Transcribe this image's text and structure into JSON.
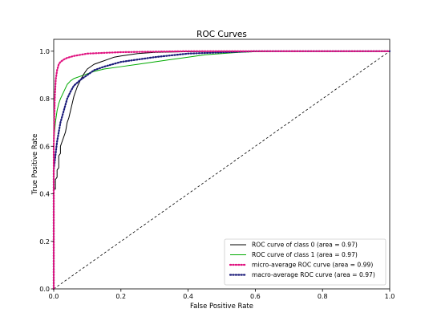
{
  "chart_data": {
    "type": "line",
    "title": "ROC Curves",
    "xlabel": "False Positive Rate",
    "ylabel": "True Positive Rate",
    "xlim": [
      0.0,
      1.0
    ],
    "ylim": [
      0.0,
      1.05
    ],
    "grid": false,
    "legend_position": "bottom-right",
    "xticks": [
      "0.0",
      "0.2",
      "0.4",
      "0.6",
      "0.8",
      "1.0"
    ],
    "yticks": [
      "0.0",
      "0.2",
      "0.4",
      "0.6",
      "0.8",
      "1.0"
    ],
    "series": [
      {
        "name": "ROC curve of class 0 (area = 0.97)",
        "color": "#000000",
        "dash": "solid",
        "x": [
          0.0,
          0.0,
          0.005,
          0.005,
          0.01,
          0.01,
          0.015,
          0.015,
          0.02,
          0.02,
          0.025,
          0.03,
          0.035,
          0.04,
          0.045,
          0.05,
          0.055,
          0.06,
          0.07,
          0.08,
          0.09,
          0.1,
          0.12,
          0.14,
          0.16,
          0.18,
          0.2,
          0.25,
          0.3,
          0.4,
          0.5,
          0.6,
          0.8,
          1.0
        ],
        "y": [
          0.0,
          0.42,
          0.42,
          0.46,
          0.47,
          0.5,
          0.51,
          0.56,
          0.57,
          0.6,
          0.62,
          0.64,
          0.66,
          0.7,
          0.72,
          0.75,
          0.78,
          0.81,
          0.85,
          0.88,
          0.905,
          0.925,
          0.945,
          0.955,
          0.965,
          0.975,
          0.98,
          0.99,
          0.995,
          0.998,
          1.0,
          1.0,
          1.0,
          1.0
        ]
      },
      {
        "name": "ROC curve of class 1 (area = 0.97)",
        "color": "#00aa00",
        "dash": "solid",
        "x": [
          0.0,
          0.0,
          0.005,
          0.01,
          0.015,
          0.02,
          0.03,
          0.04,
          0.05,
          0.06,
          0.08,
          0.1,
          0.12,
          0.15,
          0.2,
          0.25,
          0.3,
          0.35,
          0.4,
          0.45,
          0.5,
          0.55,
          0.6,
          0.7,
          0.8,
          1.0
        ],
        "y": [
          0.0,
          0.62,
          0.7,
          0.75,
          0.78,
          0.8,
          0.83,
          0.86,
          0.875,
          0.885,
          0.895,
          0.905,
          0.915,
          0.925,
          0.935,
          0.945,
          0.955,
          0.965,
          0.975,
          0.985,
          0.99,
          0.995,
          0.998,
          1.0,
          1.0,
          1.0
        ]
      },
      {
        "name": "micro-average ROC curve (area = 0.99)",
        "color": "#e0117f",
        "dash": "dotted",
        "x": [
          0.0,
          0.0,
          0.003,
          0.006,
          0.01,
          0.015,
          0.02,
          0.03,
          0.04,
          0.06,
          0.08,
          0.1,
          0.15,
          0.2,
          0.3,
          0.4,
          0.6,
          0.8,
          1.0
        ],
        "y": [
          0.0,
          0.6,
          0.8,
          0.88,
          0.92,
          0.945,
          0.955,
          0.965,
          0.972,
          0.98,
          0.985,
          0.99,
          0.993,
          0.996,
          0.998,
          1.0,
          1.0,
          1.0,
          1.0
        ]
      },
      {
        "name": "macro-average ROC curve (area = 0.97)",
        "color": "#1b1b7a",
        "dash": "dotted",
        "x": [
          0.0,
          0.0,
          0.005,
          0.01,
          0.015,
          0.02,
          0.03,
          0.04,
          0.05,
          0.06,
          0.08,
          0.1,
          0.12,
          0.15,
          0.2,
          0.25,
          0.3,
          0.4,
          0.5,
          0.6,
          0.8,
          1.0
        ],
        "y": [
          0.0,
          0.5,
          0.56,
          0.62,
          0.66,
          0.7,
          0.75,
          0.8,
          0.83,
          0.855,
          0.88,
          0.9,
          0.92,
          0.935,
          0.955,
          0.965,
          0.975,
          0.99,
          0.995,
          1.0,
          1.0,
          1.0
        ]
      },
      {
        "name": "",
        "color": "#000000",
        "dash": "dashed",
        "x": [
          0.0,
          1.0
        ],
        "y": [
          0.0,
          1.0
        ]
      }
    ]
  }
}
